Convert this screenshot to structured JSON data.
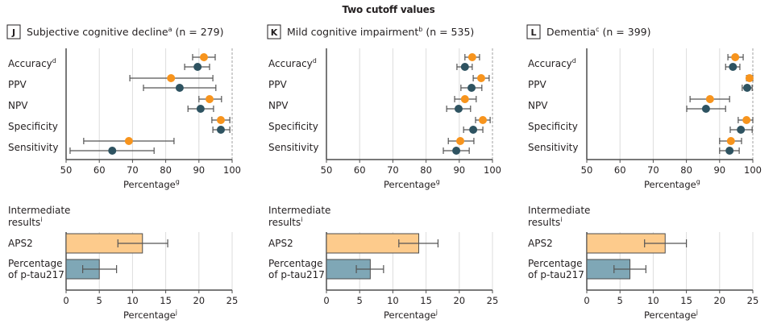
{
  "suptitle": "Two cutoff values",
  "colors": {
    "two_cutoff_marker": "#F7941D",
    "single_marker": "#2E5361",
    "aps2_bar": "#FDCB8C",
    "ptau_bar": "#7FA7B6",
    "gridline": "#DCDCDC",
    "axis": "#4D4D4D",
    "reference_line": "#A0A0A0"
  },
  "chart_data": [
    {
      "type": "scatter",
      "subtype": "forest",
      "panel_letter": "J",
      "title": "Subjective cognitive decline",
      "title_sup": "a",
      "n_label": "(n = 279)",
      "xlabel": "Percentage",
      "xlabel_sup": "g",
      "xlim": [
        50,
        100
      ],
      "xticks": [
        50,
        60,
        70,
        80,
        90,
        100
      ],
      "grid": true,
      "reference_line": 100,
      "categories": [
        {
          "label": "Accuracy",
          "sup": "d"
        },
        {
          "label": "PPV",
          "sup": ""
        },
        {
          "label": "NPV",
          "sup": ""
        },
        {
          "label": "Specificity",
          "sup": ""
        },
        {
          "label": "Sensitivity",
          "sup": ""
        }
      ],
      "series": [
        {
          "name": "orange",
          "color_key": "two_cutoff_marker",
          "values": [
            91.5,
            81.6,
            93.2,
            96.6,
            68.9
          ],
          "ci_low": [
            88.1,
            69.2,
            90.0,
            93.9,
            55.3
          ],
          "ci_high": [
            94.9,
            94.2,
            96.8,
            99.3,
            82.5
          ]
        },
        {
          "name": "teal",
          "color_key": "single_marker",
          "values": [
            89.6,
            84.2,
            90.5,
            96.6,
            63.9
          ],
          "ci_low": [
            85.7,
            73.3,
            86.7,
            94.2,
            51.2
          ],
          "ci_high": [
            93.2,
            95.1,
            94.4,
            99.3,
            76.5
          ]
        }
      ]
    },
    {
      "type": "scatter",
      "subtype": "forest",
      "panel_letter": "K",
      "title": "Mild cognitive impairment",
      "title_sup": "b",
      "n_label": "(n = 535)",
      "xlabel": "Percentage",
      "xlabel_sup": "g",
      "xlim": [
        50,
        100
      ],
      "xticks": [
        50,
        60,
        70,
        80,
        90,
        100
      ],
      "grid": true,
      "reference_line": 100,
      "categories": [
        {
          "label": "Accuracy",
          "sup": "d"
        },
        {
          "label": "PPV",
          "sup": ""
        },
        {
          "label": "NPV",
          "sup": ""
        },
        {
          "label": "Specificity",
          "sup": ""
        },
        {
          "label": "Sensitivity",
          "sup": ""
        }
      ],
      "series": [
        {
          "name": "orange",
          "color_key": "two_cutoff_marker",
          "values": [
            93.9,
            96.6,
            91.7,
            97.1,
            90.3
          ],
          "ci_low": [
            91.7,
            94.2,
            88.6,
            94.9,
            86.7
          ],
          "ci_high": [
            96.1,
            99.0,
            95.1,
            99.3,
            94.4
          ]
        },
        {
          "name": "teal",
          "color_key": "single_marker",
          "values": [
            91.7,
            93.7,
            89.8,
            94.2,
            89.1
          ],
          "ci_low": [
            89.3,
            90.5,
            86.2,
            91.3,
            85.2
          ],
          "ci_high": [
            93.9,
            96.8,
            93.4,
            97.1,
            93.0
          ]
        }
      ]
    },
    {
      "type": "scatter",
      "subtype": "forest",
      "panel_letter": "L",
      "title": "Dementia",
      "title_sup": "c",
      "n_label": "(n = 399)",
      "xlabel": "Percentage",
      "xlabel_sup": "g",
      "xlim": [
        50,
        100
      ],
      "xticks": [
        50,
        60,
        70,
        80,
        90,
        100
      ],
      "grid": true,
      "reference_line": 100,
      "categories": [
        {
          "label": "Accuracy",
          "sup": "d"
        },
        {
          "label": "PPV",
          "sup": ""
        },
        {
          "label": "NPV",
          "sup": ""
        },
        {
          "label": "Specificity",
          "sup": ""
        },
        {
          "label": "Sensitivity",
          "sup": ""
        }
      ],
      "series": [
        {
          "name": "orange",
          "color_key": "two_cutoff_marker",
          "values": [
            94.7,
            99.0,
            87.1,
            98.1,
            93.4
          ],
          "ci_low": [
            92.5,
            98.1,
            81.1,
            95.6,
            90.0
          ],
          "ci_high": [
            97.1,
            100.0,
            93.0,
            100.0,
            96.6
          ]
        },
        {
          "name": "teal",
          "color_key": "single_marker",
          "values": [
            94.0,
            98.3,
            85.9,
            96.4,
            93.0
          ],
          "ci_low": [
            91.8,
            96.8,
            80.1,
            93.2,
            90.0
          ],
          "ci_high": [
            96.1,
            99.8,
            91.8,
            99.8,
            95.9
          ]
        }
      ]
    },
    {
      "type": "bar",
      "orientation": "horizontal",
      "panel": "J",
      "title": "Intermediate results",
      "title_lines": [
        "Intermediate",
        "results"
      ],
      "title_sup": "i",
      "xlabel": "Percentage",
      "xlabel_sup": "j",
      "xlim": [
        0,
        25
      ],
      "xticks": [
        0,
        5,
        10,
        15,
        20,
        25
      ],
      "grid": true,
      "categories": [
        {
          "lines": [
            "APS2"
          ],
          "color_key": "aps2_bar"
        },
        {
          "lines": [
            "Percentage",
            "of p-tau217"
          ],
          "color_key": "ptau_bar"
        }
      ],
      "values": [
        11.5,
        5.0
      ],
      "ci_low": [
        7.8,
        2.5
      ],
      "ci_high": [
        15.3,
        7.6
      ]
    },
    {
      "type": "bar",
      "orientation": "horizontal",
      "panel": "K",
      "title": "Intermediate results",
      "title_lines": [
        "Intermediate",
        "results"
      ],
      "title_sup": "i",
      "xlabel": "Percentage",
      "xlabel_sup": "j",
      "xlim": [
        0,
        25
      ],
      "xticks": [
        0,
        5,
        10,
        15,
        20,
        25
      ],
      "grid": true,
      "categories": [
        {
          "lines": [
            "APS2"
          ],
          "color_key": "aps2_bar"
        },
        {
          "lines": [
            "Percentage",
            "of p-tau217"
          ],
          "color_key": "ptau_bar"
        }
      ],
      "values": [
        13.9,
        6.6
      ],
      "ci_low": [
        10.9,
        4.5
      ],
      "ci_high": [
        16.8,
        8.6
      ]
    },
    {
      "type": "bar",
      "orientation": "horizontal",
      "panel": "L",
      "title": "Intermediate results",
      "title_lines": [
        "Intermediate",
        "results"
      ],
      "title_sup": "i",
      "xlabel": "Percentage",
      "xlabel_sup": "j",
      "xlim": [
        0,
        25
      ],
      "xticks": [
        0,
        5,
        10,
        15,
        20,
        25
      ],
      "grid": true,
      "categories": [
        {
          "lines": [
            "APS2"
          ],
          "color_key": "aps2_bar"
        },
        {
          "lines": [
            "Percentage",
            "of p-tau217"
          ],
          "color_key": "ptau_bar"
        }
      ],
      "values": [
        11.8,
        6.5
      ],
      "ci_low": [
        8.7,
        4.1
      ],
      "ci_high": [
        15.0,
        8.9
      ]
    }
  ]
}
